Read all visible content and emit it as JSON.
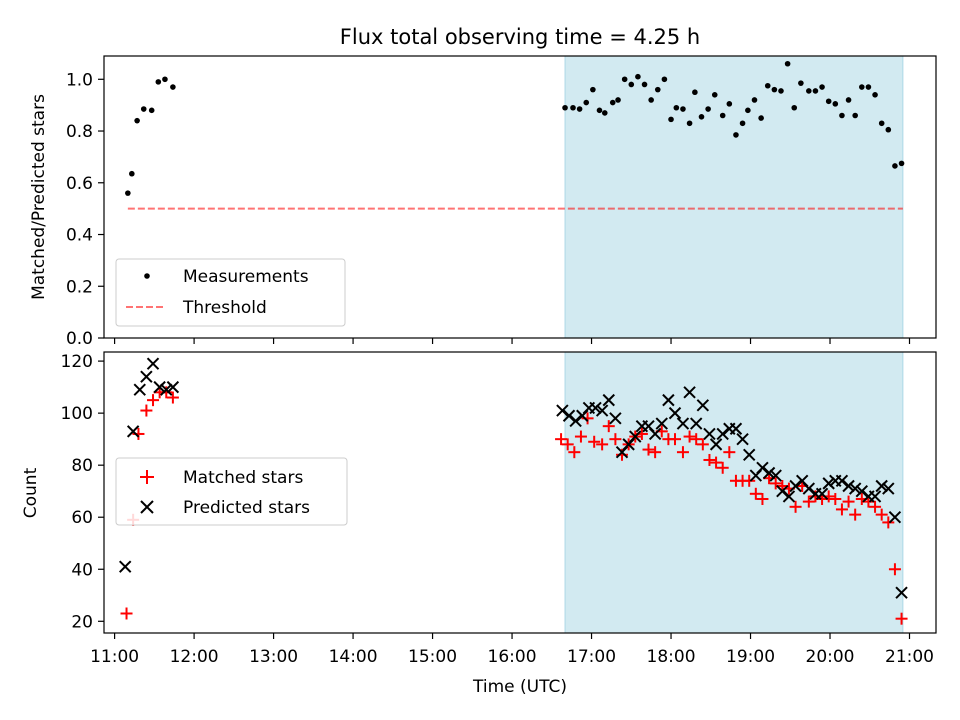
{
  "figure": {
    "title": "Flux total observing time = 4.25 h"
  },
  "colors": {
    "background": "#ffffff",
    "shade": "#add8e6",
    "measurement": "#000000",
    "threshold": "#ff0000",
    "matched": "#ff0000",
    "predicted": "#000000"
  },
  "chart_data": [
    {
      "type": "scatter",
      "title": "Flux total observing time = 4.25 h",
      "xlabel": "",
      "ylabel": "Matched/Predicted stars",
      "xlim": [
        "10:52",
        "21:20"
      ],
      "ylim": [
        0,
        1.09
      ],
      "xticks": [
        "11:00",
        "12:00",
        "13:00",
        "14:00",
        "15:00",
        "16:00",
        "17:00",
        "18:00",
        "19:00",
        "20:00",
        "21:00"
      ],
      "yticks": [
        "0.0",
        "0.2",
        "0.4",
        "0.6",
        "0.8",
        "1.0"
      ],
      "shaded_region": {
        "x": [
          "16:40",
          "20:55"
        ]
      },
      "legend": {
        "location": "lower left",
        "entries": [
          "Measurements",
          "Threshold"
        ]
      },
      "series": [
        {
          "name": "Measurements",
          "style": "dots",
          "points": [
            [
              "11:10",
              0.56
            ],
            [
              "11:13",
              0.635
            ],
            [
              "11:17",
              0.84
            ],
            [
              "11:22",
              0.885
            ],
            [
              "11:28",
              0.88
            ],
            [
              "11:33",
              0.99
            ],
            [
              "11:38",
              1.0
            ],
            [
              "11:44",
              0.97
            ],
            [
              "16:40",
              0.89
            ],
            [
              "16:46",
              0.89
            ],
            [
              "16:51",
              0.885
            ],
            [
              "16:56",
              0.91
            ],
            [
              "17:01",
              0.96
            ],
            [
              "17:06",
              0.88
            ],
            [
              "17:10",
              0.87
            ],
            [
              "17:16",
              0.91
            ],
            [
              "17:20",
              0.92
            ],
            [
              "17:25",
              1.0
            ],
            [
              "17:30",
              0.98
            ],
            [
              "17:35",
              1.01
            ],
            [
              "17:40",
              0.98
            ],
            [
              "17:45",
              0.92
            ],
            [
              "17:50",
              0.96
            ],
            [
              "17:55",
              1.0
            ],
            [
              "18:00",
              0.845
            ],
            [
              "18:04",
              0.89
            ],
            [
              "18:09",
              0.885
            ],
            [
              "18:14",
              0.83
            ],
            [
              "18:18",
              0.95
            ],
            [
              "18:23",
              0.855
            ],
            [
              "18:28",
              0.885
            ],
            [
              "18:33",
              0.94
            ],
            [
              "18:39",
              0.86
            ],
            [
              "18:44",
              0.905
            ],
            [
              "18:49",
              0.785
            ],
            [
              "18:54",
              0.83
            ],
            [
              "18:58",
              0.88
            ],
            [
              "19:03",
              0.92
            ],
            [
              "19:08",
              0.85
            ],
            [
              "19:13",
              0.975
            ],
            [
              "19:18",
              0.96
            ],
            [
              "19:23",
              0.955
            ],
            [
              "19:28",
              1.06
            ],
            [
              "19:33",
              0.89
            ],
            [
              "19:38",
              0.985
            ],
            [
              "19:44",
              0.955
            ],
            [
              "19:49",
              0.955
            ],
            [
              "19:54",
              0.97
            ],
            [
              "19:59",
              0.915
            ],
            [
              "20:04",
              0.905
            ],
            [
              "20:09",
              0.86
            ],
            [
              "20:14",
              0.92
            ],
            [
              "20:19",
              0.86
            ],
            [
              "20:24",
              0.97
            ],
            [
              "20:29",
              0.97
            ],
            [
              "20:34",
              0.94
            ],
            [
              "20:39",
              0.83
            ],
            [
              "20:44",
              0.805
            ],
            [
              "20:49",
              0.665
            ],
            [
              "20:54",
              0.675
            ]
          ]
        },
        {
          "name": "Threshold",
          "style": "dashed-line",
          "points": [
            [
              "11:10",
              0.5
            ],
            [
              "20:55",
              0.5
            ]
          ]
        }
      ]
    },
    {
      "type": "scatter",
      "xlabel": "Time (UTC)",
      "ylabel": "Count",
      "xlim": [
        "10:52",
        "21:20"
      ],
      "ylim": [
        15.5,
        123.5
      ],
      "xticks": [
        "11:00",
        "12:00",
        "13:00",
        "14:00",
        "15:00",
        "16:00",
        "17:00",
        "18:00",
        "19:00",
        "20:00",
        "21:00"
      ],
      "xtick_labels": [
        "11:00",
        "12:00",
        "13:00",
        "14:00",
        "15:00",
        "16:00",
        "17:00",
        "18:00",
        "19:00",
        "20:00",
        "21:00"
      ],
      "yticks": [
        "20",
        "40",
        "60",
        "80",
        "100",
        "120"
      ],
      "shaded_region": {
        "x": [
          "16:40",
          "20:55"
        ]
      },
      "legend": {
        "location": "center left",
        "entries": [
          "Matched stars",
          "Predicted stars"
        ]
      },
      "series": [
        {
          "name": "Matched stars",
          "marker": "plus",
          "points": [
            [
              "11:09",
              23
            ],
            [
              "11:14",
              59
            ],
            [
              "11:18",
              92
            ],
            [
              "11:24",
              101
            ],
            [
              "11:29",
              105
            ],
            [
              "11:34",
              108
            ],
            [
              "11:39",
              108
            ],
            [
              "11:44",
              106
            ],
            [
              "16:37",
              90
            ],
            [
              "16:42",
              88
            ],
            [
              "16:47",
              85
            ],
            [
              "16:52",
              91
            ],
            [
              "16:57",
              98
            ],
            [
              "17:02",
              89
            ],
            [
              "17:08",
              88
            ],
            [
              "17:13",
              95
            ],
            [
              "17:18",
              90
            ],
            [
              "17:23",
              84
            ],
            [
              "17:28",
              88
            ],
            [
              "17:33",
              91
            ],
            [
              "17:38",
              92
            ],
            [
              "17:43",
              86
            ],
            [
              "17:48",
              85
            ],
            [
              "17:53",
              93
            ],
            [
              "17:58",
              90
            ],
            [
              "18:03",
              90
            ],
            [
              "18:09",
              85
            ],
            [
              "18:14",
              91
            ],
            [
              "18:19",
              90
            ],
            [
              "18:24",
              88
            ],
            [
              "18:29",
              82
            ],
            [
              "18:34",
              81
            ],
            [
              "18:39",
              79
            ],
            [
              "18:44",
              85
            ],
            [
              "18:49",
              74
            ],
            [
              "18:54",
              74
            ],
            [
              "18:59",
              74
            ],
            [
              "19:04",
              69
            ],
            [
              "19:09",
              67
            ],
            [
              "19:14",
              75
            ],
            [
              "19:19",
              73
            ],
            [
              "19:24",
              72
            ],
            [
              "19:29",
              71
            ],
            [
              "19:34",
              64
            ],
            [
              "19:39",
              72
            ],
            [
              "19:44",
              66
            ],
            [
              "19:49",
              68
            ],
            [
              "19:54",
              67
            ],
            [
              "19:59",
              68
            ],
            [
              "20:04",
              67
            ],
            [
              "20:09",
              63
            ],
            [
              "20:14",
              66
            ],
            [
              "20:19",
              61
            ],
            [
              "20:24",
              67
            ],
            [
              "20:29",
              66
            ],
            [
              "20:34",
              64
            ],
            [
              "20:39",
              61
            ],
            [
              "20:44",
              58
            ],
            [
              "20:49",
              40
            ],
            [
              "20:54",
              21
            ]
          ]
        },
        {
          "name": "Predicted stars",
          "marker": "x",
          "points": [
            [
              "11:08",
              41
            ],
            [
              "11:14",
              93
            ],
            [
              "11:19",
              109
            ],
            [
              "11:24",
              114
            ],
            [
              "11:29",
              119
            ],
            [
              "11:34",
              110
            ],
            [
              "11:39",
              109
            ],
            [
              "11:44",
              110
            ],
            [
              "16:38",
              101
            ],
            [
              "16:43",
              99
            ],
            [
              "16:48",
              97
            ],
            [
              "16:53",
              99
            ],
            [
              "16:58",
              102
            ],
            [
              "17:03",
              102
            ],
            [
              "17:08",
              101
            ],
            [
              "17:13",
              105
            ],
            [
              "17:18",
              98
            ],
            [
              "17:23",
              85
            ],
            [
              "17:28",
              88
            ],
            [
              "17:33",
              91
            ],
            [
              "17:38",
              95
            ],
            [
              "17:43",
              95
            ],
            [
              "17:48",
              92
            ],
            [
              "17:53",
              96
            ],
            [
              "17:58",
              105
            ],
            [
              "18:03",
              100
            ],
            [
              "18:09",
              96
            ],
            [
              "18:14",
              108
            ],
            [
              "18:19",
              96
            ],
            [
              "18:24",
              103
            ],
            [
              "18:29",
              92
            ],
            [
              "18:34",
              88
            ],
            [
              "18:39",
              92
            ],
            [
              "18:44",
              94
            ],
            [
              "18:49",
              94
            ],
            [
              "18:54",
              90
            ],
            [
              "18:59",
              84
            ],
            [
              "19:04",
              76
            ],
            [
              "19:09",
              79
            ],
            [
              "19:14",
              77
            ],
            [
              "19:19",
              76
            ],
            [
              "19:24",
              70
            ],
            [
              "19:29",
              68
            ],
            [
              "19:34",
              72
            ],
            [
              "19:39",
              74
            ],
            [
              "19:44",
              71
            ],
            [
              "19:49",
              69
            ],
            [
              "19:54",
              69
            ],
            [
              "19:59",
              73
            ],
            [
              "20:04",
              74
            ],
            [
              "20:09",
              74
            ],
            [
              "20:14",
              72
            ],
            [
              "20:19",
              71
            ],
            [
              "20:24",
              70
            ],
            [
              "20:29",
              68
            ],
            [
              "20:34",
              68
            ],
            [
              "20:39",
              72
            ],
            [
              "20:44",
              71
            ],
            [
              "20:49",
              60
            ],
            [
              "20:54",
              31
            ]
          ]
        }
      ]
    }
  ]
}
